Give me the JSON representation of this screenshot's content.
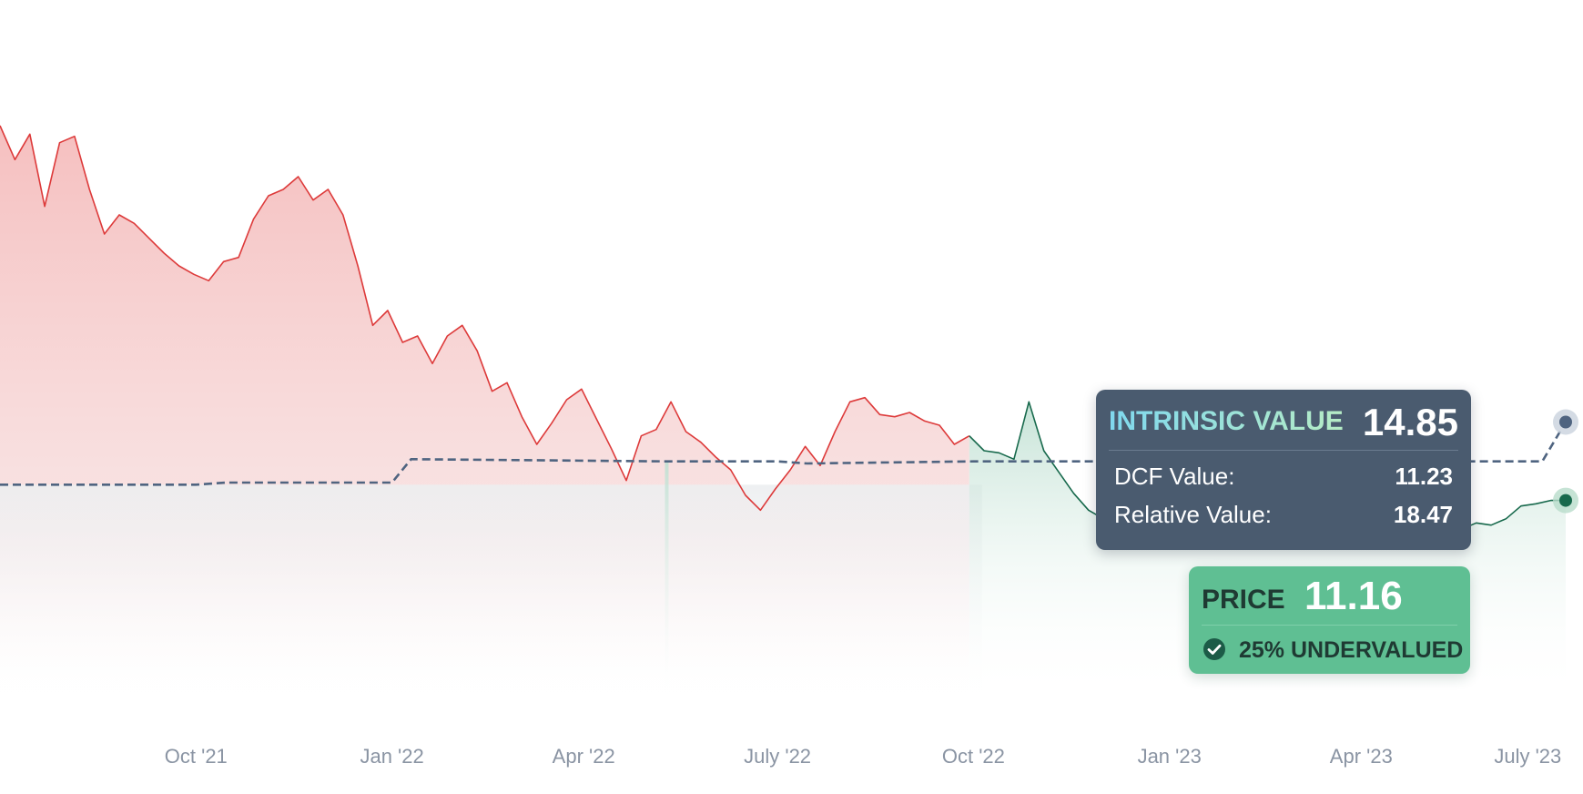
{
  "chart_data": {
    "type": "line",
    "x_labels": [
      "Oct '21",
      "Jan '22",
      "Apr '22",
      "July '22",
      "Oct '22",
      "Jan '23",
      "Apr '23",
      "July '23"
    ],
    "series": [
      {
        "role": "price",
        "x": [
          "2021-07-01",
          "2021-07-08",
          "2021-07-15",
          "2021-07-22",
          "2021-07-29",
          "2021-08-05",
          "2021-08-12",
          "2021-08-19",
          "2021-08-26",
          "2021-09-02",
          "2021-09-09",
          "2021-09-16",
          "2021-09-23",
          "2021-09-30",
          "2021-10-07",
          "2021-10-14",
          "2021-10-21",
          "2021-10-28",
          "2021-11-04",
          "2021-11-11",
          "2021-11-18",
          "2021-11-25",
          "2021-12-02",
          "2021-12-09",
          "2021-12-16",
          "2021-12-23",
          "2021-12-30",
          "2022-01-06",
          "2022-01-13",
          "2022-01-20",
          "2022-01-27",
          "2022-02-03",
          "2022-02-10",
          "2022-02-17",
          "2022-02-24",
          "2022-03-03",
          "2022-03-10",
          "2022-03-17",
          "2022-03-24",
          "2022-03-31",
          "2022-04-07",
          "2022-04-14",
          "2022-04-21",
          "2022-04-28",
          "2022-05-05",
          "2022-05-12",
          "2022-05-19",
          "2022-05-26",
          "2022-06-02",
          "2022-06-09",
          "2022-06-16",
          "2022-06-23",
          "2022-06-30",
          "2022-07-07",
          "2022-07-14",
          "2022-07-21",
          "2022-07-28",
          "2022-08-04",
          "2022-08-11",
          "2022-08-18",
          "2022-08-25",
          "2022-09-01",
          "2022-09-08",
          "2022-09-15",
          "2022-09-22",
          "2022-09-29",
          "2022-10-06",
          "2022-10-13",
          "2022-10-20",
          "2022-10-27",
          "2022-11-03",
          "2022-11-10",
          "2022-11-17",
          "2022-11-24",
          "2022-12-01",
          "2022-12-08",
          "2022-12-15",
          "2022-12-22",
          "2022-12-29",
          "2023-01-05",
          "2023-01-12",
          "2023-01-19",
          "2023-01-26",
          "2023-02-02",
          "2023-02-09",
          "2023-02-16",
          "2023-02-23",
          "2023-03-02",
          "2023-03-09",
          "2023-03-16",
          "2023-03-23",
          "2023-03-30",
          "2023-04-06",
          "2023-04-13",
          "2023-04-20",
          "2023-04-27",
          "2023-05-04",
          "2023-05-11",
          "2023-05-18",
          "2023-05-25",
          "2023-06-01",
          "2023-06-08",
          "2023-06-15",
          "2023-06-22",
          "2023-06-29",
          "2023-07-06"
        ],
        "values": [
          28.8,
          27.2,
          28.4,
          25.0,
          28.0,
          28.3,
          25.8,
          23.7,
          24.6,
          24.2,
          23.5,
          22.8,
          22.2,
          21.8,
          21.5,
          22.4,
          22.6,
          24.4,
          25.5,
          25.8,
          26.4,
          25.3,
          25.8,
          24.6,
          22.2,
          19.4,
          20.1,
          18.6,
          18.9,
          17.6,
          18.9,
          19.4,
          18.2,
          16.3,
          16.7,
          15.1,
          13.8,
          14.8,
          15.9,
          16.4,
          15.0,
          13.6,
          12.1,
          14.2,
          14.5,
          15.8,
          14.4,
          13.9,
          13.2,
          12.6,
          11.4,
          10.7,
          11.7,
          12.6,
          13.7,
          12.8,
          14.4,
          15.8,
          16.0,
          15.2,
          15.1,
          15.3,
          14.9,
          14.7,
          13.8,
          14.2,
          13.5,
          13.4,
          13.1,
          15.8,
          13.5,
          12.5,
          11.5,
          10.7,
          10.3,
          10.3,
          10.1,
          11.3,
          10.8,
          10.6,
          10.8,
          10.4,
          10.4,
          10.5,
          11.5,
          11.8,
          11.7,
          11.6,
          11.0,
          10.4,
          10.1,
          10.4,
          10.6,
          10.0,
          9.8,
          10.3,
          10.0,
          9.6,
          9.8,
          10.1,
          10.0,
          10.3,
          10.9,
          11.0,
          11.16,
          11.16
        ]
      },
      {
        "role": "intrinsic-value",
        "x": [
          "2021-07-01",
          "2021-10-01",
          "2021-10-15",
          "2022-01-01",
          "2022-01-10",
          "2022-05-10",
          "2022-07-01",
          "2022-07-15",
          "2022-10-01",
          "2023-06-25",
          "2023-07-06"
        ],
        "values": [
          11.9,
          11.9,
          12.0,
          12.0,
          13.1,
          13.0,
          13.0,
          12.9,
          13.0,
          13.0,
          14.85
        ]
      }
    ],
    "undervalued_periods": [
      [
        "2022-05-10",
        "2022-05-12"
      ],
      [
        "2022-10-05",
        "2023-07-06"
      ]
    ],
    "colors": {
      "overvalued": "#dd3a3a",
      "undervalued": "#17694c",
      "intrinsic": "#4f6480",
      "axis_text": "#8a94a3"
    }
  },
  "intrinsic_card": {
    "title": "INTRINSIC VALUE",
    "value": "14.85",
    "rows": [
      {
        "label": "DCF Value:",
        "value": "11.23"
      },
      {
        "label": "Relative Value:",
        "value": "18.47"
      }
    ]
  },
  "price_card": {
    "label": "PRICE",
    "value": "11.16",
    "status": "25% UNDERVALUED",
    "status_icon": "check-circle-icon"
  }
}
